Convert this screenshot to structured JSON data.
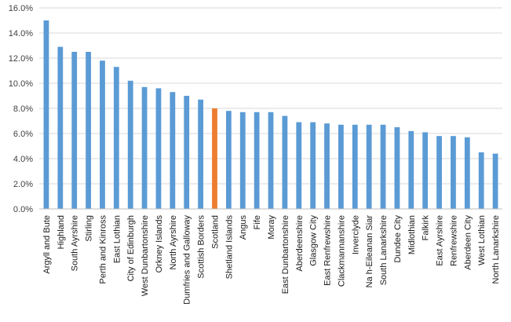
{
  "chart_data": {
    "type": "bar",
    "title": "",
    "xlabel": "",
    "ylabel": "",
    "ylim": [
      0,
      16
    ],
    "y_ticks": [
      "0.0%",
      "2.0%",
      "4.0%",
      "6.0%",
      "8.0%",
      "10.0%",
      "12.0%",
      "14.0%",
      "16.0%"
    ],
    "grid": true,
    "legend": "none",
    "colors": {
      "default": "#5b9bd5",
      "highlight": "#ed7d31"
    },
    "highlight_category": "Scotland",
    "categories": [
      "Argyll and Bute",
      "Highland",
      "South Ayrshire",
      "Stirling",
      "Perth and Kinross",
      "East Lothian",
      "City of Edinburgh",
      "West Dunbartonshire",
      "Orkney Islands",
      "North Ayrshire",
      "Dumfries and Galloway",
      "Scottish Borders",
      "Scotland",
      "Shetland Islands",
      "Angus",
      "Fife",
      "Moray",
      "East Dunbartonshire",
      "Aberdeenshire",
      "Glasgow City",
      "East Renfrewshire",
      "Clackmannanshire",
      "Inverclyde",
      "Na h-Eileanan Siar",
      "South Lanarkshire",
      "Dundee City",
      "Midlothian",
      "Falkirk",
      "East Ayrshire",
      "Renfrewshire",
      "Aberdeen City",
      "West Lothian",
      "North Lanarkshire"
    ],
    "values": [
      15.0,
      12.9,
      12.5,
      12.5,
      11.8,
      11.3,
      10.2,
      9.7,
      9.6,
      9.3,
      9.0,
      8.7,
      8.0,
      7.8,
      7.7,
      7.7,
      7.7,
      7.4,
      6.9,
      6.9,
      6.8,
      6.7,
      6.7,
      6.7,
      6.7,
      6.5,
      6.2,
      6.1,
      5.8,
      5.8,
      5.7,
      4.5,
      4.4
    ]
  }
}
